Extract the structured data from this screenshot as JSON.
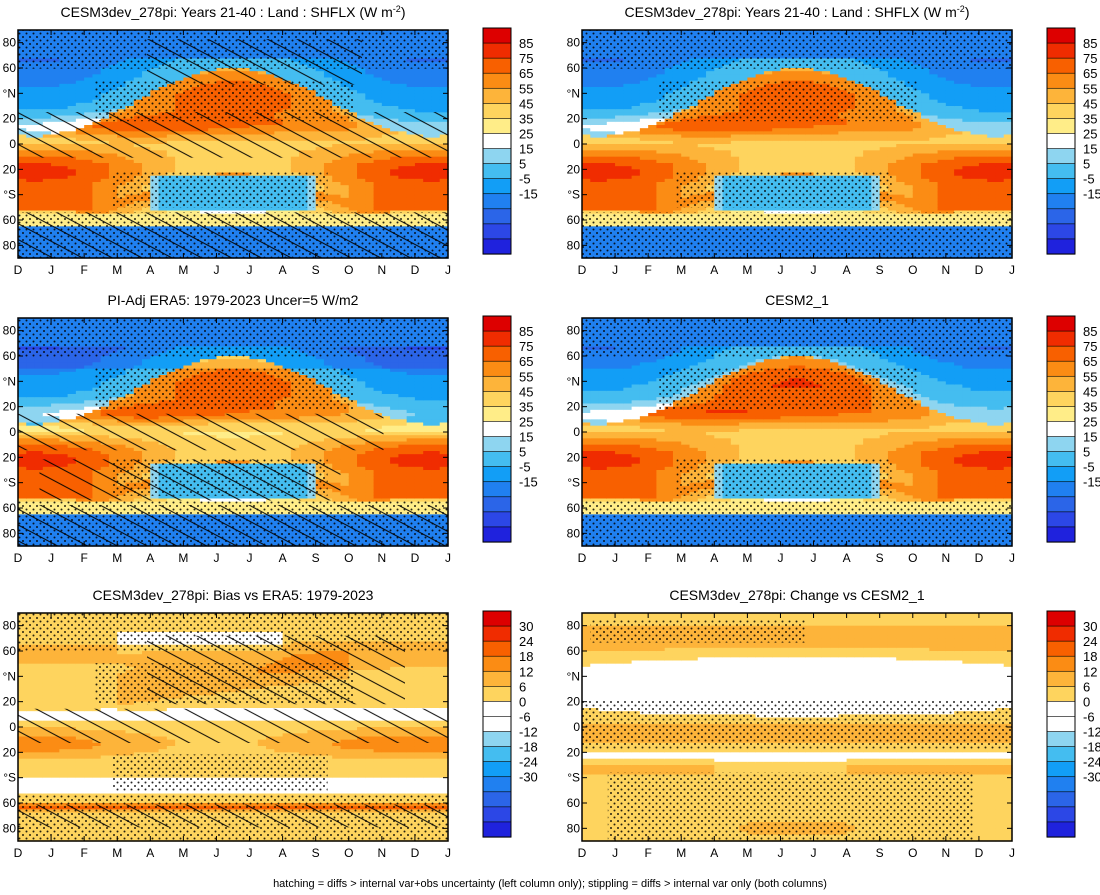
{
  "footnote": "hatching = diffs > internal var+obs uncertainty (left column only); stippling = diffs > internal var only (both columns)",
  "chart_data": [
    {
      "type": "heatmap",
      "title": "CESM3dev_278pi: Years 21-40 : Land : SHFLX (W m",
      "title_sup": "-2",
      "title_end": ")",
      "field": "clim_hatched",
      "x": [
        "D",
        "J",
        "F",
        "M",
        "A",
        "M",
        "J",
        "J",
        "A",
        "S",
        "O",
        "N",
        "D",
        "J"
      ],
      "y_ticks": [
        "80",
        "60",
        "°N",
        "20",
        "0",
        "20",
        "°S",
        "60",
        "80"
      ],
      "ylim": [
        -90,
        90
      ],
      "colorbar": {
        "levels": [
          "85",
          "75",
          "65",
          "55",
          "45",
          "35",
          "25",
          "15",
          "5",
          "-5",
          "-15"
        ],
        "colors": [
          "#dd0000",
          "#f02c00",
          "#f86000",
          "#fb8c14",
          "#fdb43a",
          "#fed45e",
          "#ffed88",
          "#ffffff",
          "#8ed5f0",
          "#44bdf0",
          "#129ef6",
          "#2080f0",
          "#2b65e8",
          "#2c47e6",
          "#1f22dd"
        ]
      }
    },
    {
      "type": "heatmap",
      "title": "CESM3dev_278pi: Years 21-40 : Land : SHFLX (W m",
      "title_sup": "-2",
      "title_end": ")",
      "field": "clim_stippled",
      "x": [
        "D",
        "J",
        "F",
        "M",
        "A",
        "M",
        "J",
        "J",
        "A",
        "S",
        "O",
        "N",
        "D",
        "J"
      ],
      "y_ticks": [
        "80",
        "60",
        "°N",
        "20",
        "0",
        "20",
        "°S",
        "60",
        "80"
      ],
      "ylim": [
        -90,
        90
      ],
      "colorbar": {
        "levels": [
          "85",
          "75",
          "65",
          "55",
          "45",
          "35",
          "25",
          "15",
          "5",
          "-5",
          "-15"
        ],
        "colors": [
          "#dd0000",
          "#f02c00",
          "#f86000",
          "#fb8c14",
          "#fdb43a",
          "#fed45e",
          "#ffed88",
          "#ffffff",
          "#8ed5f0",
          "#44bdf0",
          "#129ef6",
          "#2080f0",
          "#2b65e8",
          "#2c47e6",
          "#1f22dd"
        ]
      }
    },
    {
      "type": "heatmap",
      "title": "PI-Adj ERA5: 1979-2023 Uncer=5 W/m2",
      "field": "era5",
      "x": [
        "D",
        "J",
        "F",
        "M",
        "A",
        "M",
        "J",
        "J",
        "A",
        "S",
        "O",
        "N",
        "D",
        "J"
      ],
      "y_ticks": [
        "80",
        "60",
        "°N",
        "20",
        "0",
        "20",
        "°S",
        "60",
        "80"
      ],
      "ylim": [
        -90,
        90
      ],
      "colorbar": {
        "levels": [
          "85",
          "75",
          "65",
          "55",
          "45",
          "35",
          "25",
          "15",
          "5",
          "-5",
          "-15"
        ],
        "colors": [
          "#dd0000",
          "#f02c00",
          "#f86000",
          "#fb8c14",
          "#fdb43a",
          "#fed45e",
          "#ffed88",
          "#ffffff",
          "#8ed5f0",
          "#44bdf0",
          "#129ef6",
          "#2080f0",
          "#2b65e8",
          "#2c47e6",
          "#1f22dd"
        ]
      }
    },
    {
      "type": "heatmap",
      "title": "CESM2_1",
      "field": "cesm2",
      "x": [
        "D",
        "J",
        "F",
        "M",
        "A",
        "M",
        "J",
        "J",
        "A",
        "S",
        "O",
        "N",
        "D",
        "J"
      ],
      "y_ticks": [
        "80",
        "60",
        "°N",
        "20",
        "0",
        "20",
        "°S",
        "60",
        "80"
      ],
      "ylim": [
        -90,
        90
      ],
      "colorbar": {
        "levels": [
          "85",
          "75",
          "65",
          "55",
          "45",
          "35",
          "25",
          "15",
          "5",
          "-5",
          "-15"
        ],
        "colors": [
          "#dd0000",
          "#f02c00",
          "#f86000",
          "#fb8c14",
          "#fdb43a",
          "#fed45e",
          "#ffed88",
          "#ffffff",
          "#8ed5f0",
          "#44bdf0",
          "#129ef6",
          "#2080f0",
          "#2b65e8",
          "#2c47e6",
          "#1f22dd"
        ]
      }
    },
    {
      "type": "heatmap",
      "title": "CESM3dev_278pi: Bias vs ERA5: 1979-2023",
      "field": "bias",
      "x": [
        "D",
        "J",
        "F",
        "M",
        "A",
        "M",
        "J",
        "J",
        "A",
        "S",
        "O",
        "N",
        "D",
        "J"
      ],
      "y_ticks": [
        "80",
        "60",
        "°N",
        "20",
        "0",
        "20",
        "°S",
        "60",
        "80"
      ],
      "ylim": [
        -90,
        90
      ],
      "colorbar": {
        "levels": [
          "30",
          "24",
          "18",
          "12",
          "6",
          "0",
          "-6",
          "-12",
          "-18",
          "-24",
          "-30"
        ],
        "colors": [
          "#dd0000",
          "#f02c00",
          "#f86000",
          "#fb8c14",
          "#fdb43a",
          "#fed45e",
          "#ffffff",
          "#ffffff",
          "#8ed5f0",
          "#44bdf0",
          "#129ef6",
          "#2080f0",
          "#2b65e8",
          "#2c47e6",
          "#1f22dd"
        ]
      }
    },
    {
      "type": "heatmap",
      "title": "CESM3dev_278pi: Change vs CESM2_1",
      "field": "change",
      "x": [
        "D",
        "J",
        "F",
        "M",
        "A",
        "M",
        "J",
        "J",
        "A",
        "S",
        "O",
        "N",
        "D",
        "J"
      ],
      "y_ticks": [
        "80",
        "60",
        "°N",
        "20",
        "0",
        "20",
        "°S",
        "60",
        "80"
      ],
      "ylim": [
        -90,
        90
      ],
      "colorbar": {
        "levels": [
          "30",
          "24",
          "18",
          "12",
          "6",
          "0",
          "-6",
          "-12",
          "-18",
          "-24",
          "-30"
        ],
        "colors": [
          "#dd0000",
          "#f02c00",
          "#f86000",
          "#fb8c14",
          "#fdb43a",
          "#fed45e",
          "#ffffff",
          "#ffffff",
          "#8ed5f0",
          "#44bdf0",
          "#129ef6",
          "#2080f0",
          "#2b65e8",
          "#2c47e6",
          "#1f22dd"
        ]
      }
    }
  ]
}
